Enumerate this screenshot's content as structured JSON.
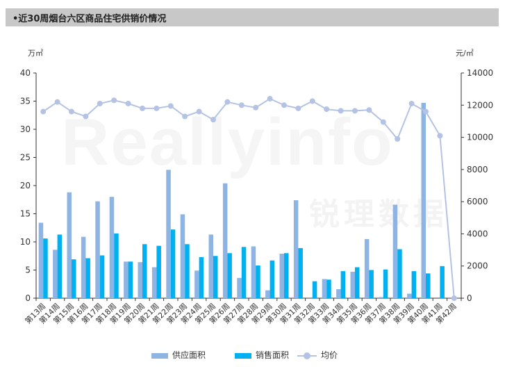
{
  "header": {
    "title": "•近30周烟台六区商品住宅供销价情况"
  },
  "watermark": {
    "text_en": "Reallyinfo",
    "text_cn": "锐理数据"
  },
  "chart_data": {
    "type": "bar",
    "categories": [
      "第13周",
      "第14周",
      "第15周",
      "第16周",
      "第17周",
      "第18周",
      "第19周",
      "第20周",
      "第21周",
      "第22周",
      "第23周",
      "第24周",
      "第25周",
      "第26周",
      "第27周",
      "第28周",
      "第29周",
      "第30周",
      "第31周",
      "第32周",
      "第33周",
      "第34周",
      "第35周",
      "第36周",
      "第37周",
      "第38周",
      "第39周",
      "第40周",
      "第41周",
      "第42周"
    ],
    "series": [
      {
        "name": "供应面积",
        "type": "bar",
        "axis": "left",
        "color": "#8eb4e3",
        "values": [
          13.4,
          8.6,
          18.8,
          10.9,
          17.2,
          18.0,
          6.5,
          6.4,
          5.5,
          22.8,
          14.9,
          4.9,
          11.3,
          20.4,
          3.6,
          9.2,
          1.4,
          7.9,
          17.4,
          0,
          3.4,
          1.6,
          4.7,
          10.5,
          0.2,
          16.6,
          0.8,
          34.7,
          0,
          0
        ]
      },
      {
        "name": "销售面积",
        "type": "bar",
        "axis": "left",
        "color": "#00b0f0",
        "values": [
          10.6,
          11.3,
          6.9,
          7.1,
          7.6,
          11.5,
          6.5,
          9.6,
          9.3,
          12.2,
          9.6,
          7.3,
          7.5,
          8.0,
          9.1,
          5.8,
          6.7,
          8.0,
          8.9,
          3.0,
          3.3,
          4.8,
          5.5,
          5.0,
          5.1,
          8.7,
          4.8,
          4.4,
          5.7,
          0
        ]
      },
      {
        "name": "均价",
        "type": "line",
        "axis": "right",
        "color": "#b4c3e4",
        "values": [
          11600,
          12200,
          11600,
          11300,
          12100,
          12300,
          12100,
          11800,
          11800,
          11950,
          11300,
          11600,
          11100,
          12200,
          12000,
          11850,
          12400,
          12000,
          11800,
          12250,
          11750,
          11650,
          11650,
          11700,
          10950,
          9900,
          12100,
          11600,
          10100,
          0
        ]
      }
    ],
    "y_left": {
      "unit": "万㎡",
      "min": 0,
      "max": 40,
      "ticks": [
        "0",
        "5",
        "10",
        "15",
        "20",
        "25",
        "30",
        "35",
        "40"
      ]
    },
    "y_right": {
      "unit": "元/㎡",
      "min": 0,
      "max": 14000,
      "ticks": [
        "0",
        "2000",
        "4000",
        "6000",
        "8000",
        "10000",
        "12000",
        "14000"
      ]
    },
    "grid": false,
    "legend_position": "bottom"
  }
}
